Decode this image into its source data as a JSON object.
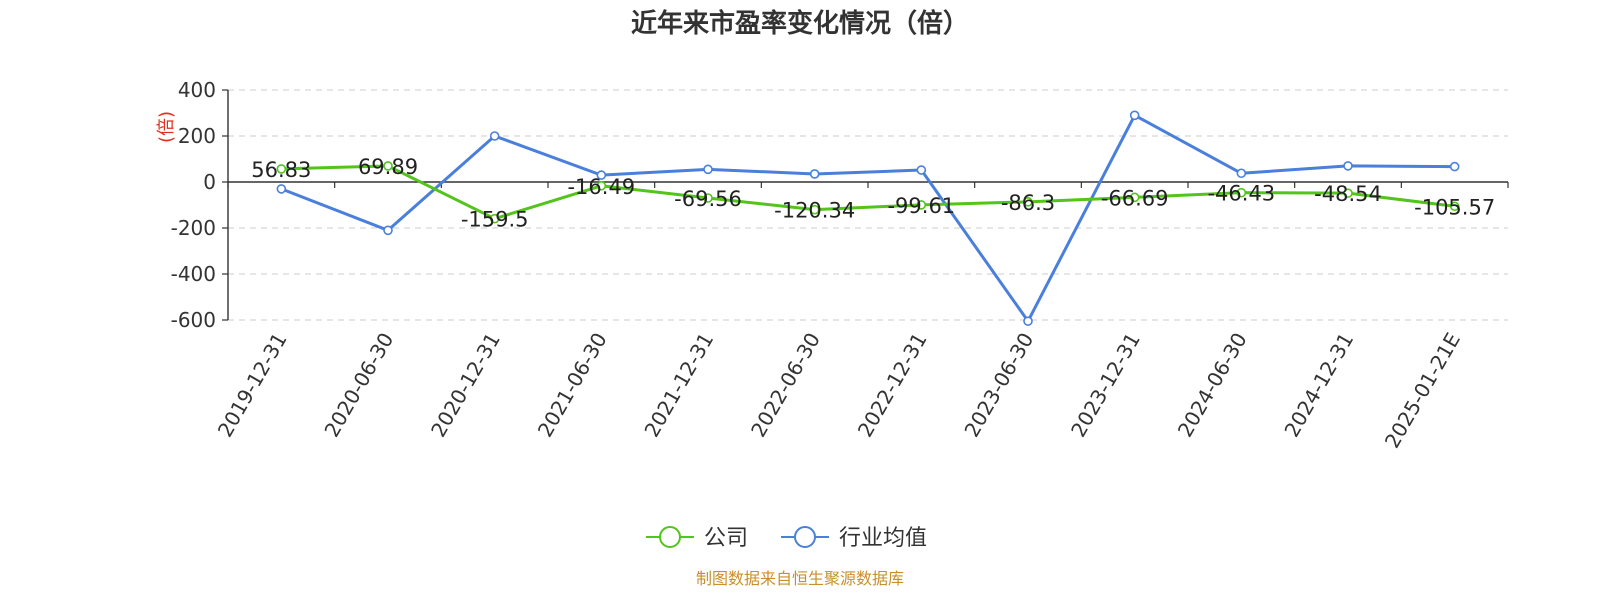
{
  "chart_data": {
    "type": "line",
    "title": "近年来市盈率变化情况（倍）",
    "unit_label": "(倍)",
    "categories": [
      "2019-12-31",
      "2020-06-30",
      "2020-12-31",
      "2021-06-30",
      "2021-12-31",
      "2022-06-30",
      "2022-12-31",
      "2023-06-30",
      "2023-12-31",
      "2024-06-30",
      "2024-12-31",
      "2025-01-21E"
    ],
    "series": [
      {
        "name": "公司",
        "color": "#52c41a",
        "values": [
          56.83,
          69.89,
          -159.5,
          -16.49,
          -69.56,
          -120.34,
          -99.61,
          -86.3,
          -66.69,
          -46.43,
          -48.54,
          -105.57
        ],
        "data_labels": [
          "56.83",
          "69.89",
          "-159.5",
          "-16.49",
          "-69.56",
          "-120.34",
          "-99.61",
          "-86.3",
          "-66.69",
          "-46.43",
          "-48.54",
          "-105.57"
        ]
      },
      {
        "name": "行业均值",
        "color": "#4a7fdc",
        "values": [
          -30,
          -210,
          200,
          30,
          55,
          35,
          52,
          -605,
          290,
          38,
          70,
          67
        ]
      }
    ],
    "yticks": [
      "400",
      "200",
      "0",
      "-200",
      "-400",
      "-600"
    ],
    "ylim": [
      -600,
      400
    ],
    "grid": true,
    "legend_position": "bottom"
  },
  "source_note": "制图数据来自恒生聚源数据库"
}
